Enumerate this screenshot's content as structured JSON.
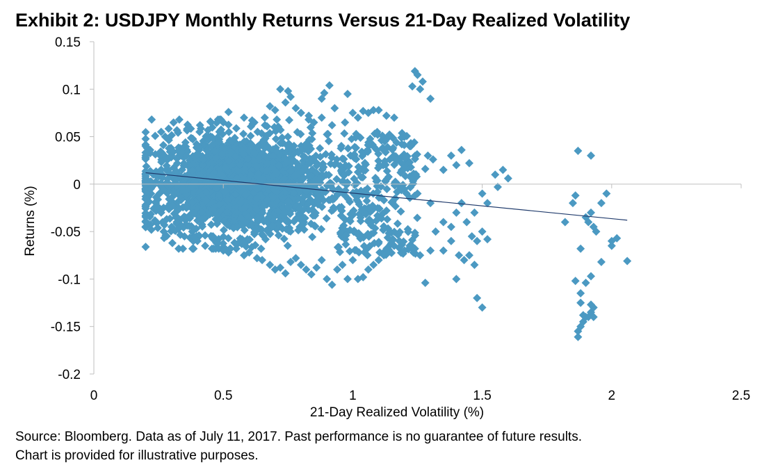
{
  "exhibit": {
    "title": "Exhibit 2: USDJPY Monthly Returns Versus 21-Day Realized Volatility",
    "source_line1": "Source: Bloomberg.  Data as of July 11, 2017.  Past performance is no guarantee of future results.",
    "source_line2": "Chart is provided for illustrative purposes."
  },
  "colors": {
    "marker": "#4b99c2",
    "trendline": "#1f3a6b",
    "axis": "#bfbfbf"
  },
  "chart_data": {
    "type": "scatter",
    "title": "Exhibit 2: USDJPY Monthly Returns Versus 21-Day Realized Volatility",
    "xlabel": "21-Day Realized Volatility (%)",
    "ylabel": "Returns (%)",
    "xlim": [
      0,
      2.5
    ],
    "ylim": [
      -0.2,
      0.15
    ],
    "x_ticks": [
      0,
      0.5,
      1,
      1.5,
      2,
      2.5
    ],
    "x_tick_labels": [
      "0",
      "0.5",
      "1",
      "1.5",
      "2",
      "2.5"
    ],
    "y_ticks": [
      -0.2,
      -0.15,
      -0.1,
      -0.05,
      0,
      0.05,
      0.1,
      0.15
    ],
    "y_tick_labels": [
      "-0.2",
      "-0.15",
      "-0.1",
      "-0.05",
      "0",
      "0.05",
      "0.1",
      "0.15"
    ],
    "grid": false,
    "legend": "none",
    "marker": "diamond",
    "trendline": {
      "x": [
        0.2,
        2.06
      ],
      "y": [
        0.012,
        -0.038
      ]
    },
    "dense_region": {
      "description": "several thousand overlapping daily observations",
      "x_range": [
        0.2,
        1.0
      ],
      "y_range": [
        -0.07,
        0.07
      ]
    },
    "points": [
      [
        0.26,
        0.055
      ],
      [
        0.3,
        0.03
      ],
      [
        0.33,
        0.068
      ],
      [
        0.36,
        0.058
      ],
      [
        0.41,
        0.062
      ],
      [
        0.45,
        0.066
      ],
      [
        0.5,
        0.065
      ],
      [
        0.52,
        0.076
      ],
      [
        0.58,
        0.07
      ],
      [
        0.62,
        0.065
      ],
      [
        0.66,
        0.07
      ],
      [
        0.68,
        0.082
      ],
      [
        0.7,
        0.078
      ],
      [
        0.72,
        0.1
      ],
      [
        0.75,
        0.098
      ],
      [
        0.76,
        0.092
      ],
      [
        0.74,
        0.086
      ],
      [
        0.78,
        0.08
      ],
      [
        0.8,
        0.075
      ],
      [
        0.83,
        0.072
      ],
      [
        0.85,
        0.065
      ],
      [
        0.88,
        0.07
      ],
      [
        0.92,
        0.062
      ],
      [
        0.88,
        0.09
      ],
      [
        0.89,
        0.096
      ],
      [
        0.91,
        0.104
      ],
      [
        0.93,
        0.08
      ],
      [
        0.97,
        0.065
      ],
      [
        0.98,
        0.095
      ],
      [
        1.0,
        0.075
      ],
      [
        1.02,
        0.07
      ],
      [
        1.04,
        0.077
      ],
      [
        1.06,
        0.075
      ],
      [
        1.08,
        0.078
      ],
      [
        1.1,
        0.078
      ],
      [
        1.13,
        0.072
      ],
      [
        1.16,
        0.07
      ],
      [
        1.2,
        0.05
      ],
      [
        1.22,
        0.04
      ],
      [
        1.24,
        0.119
      ],
      [
        1.25,
        0.115
      ],
      [
        1.23,
        0.103
      ],
      [
        1.26,
        0.1
      ],
      [
        1.27,
        0.108
      ],
      [
        1.3,
        0.09
      ],
      [
        1.29,
        0.03
      ],
      [
        1.31,
        0.026
      ],
      [
        1.35,
        0.015
      ],
      [
        1.38,
        0.03
      ],
      [
        1.42,
        0.036
      ],
      [
        1.45,
        0.022
      ],
      [
        1.22,
        0.023
      ],
      [
        1.28,
        0.016
      ],
      [
        1.4,
        0.02
      ],
      [
        0.22,
        -0.005
      ],
      [
        0.24,
        -0.02
      ],
      [
        0.26,
        -0.03
      ],
      [
        0.27,
        -0.05
      ],
      [
        0.3,
        -0.045
      ],
      [
        0.32,
        -0.04
      ],
      [
        0.35,
        -0.055
      ],
      [
        0.38,
        -0.05
      ],
      [
        0.4,
        -0.06
      ],
      [
        0.43,
        -0.065
      ],
      [
        0.46,
        -0.055
      ],
      [
        0.48,
        -0.062
      ],
      [
        0.5,
        -0.07
      ],
      [
        0.52,
        -0.072
      ],
      [
        0.55,
        -0.068
      ],
      [
        0.58,
        -0.075
      ],
      [
        0.6,
        -0.072
      ],
      [
        0.63,
        -0.078
      ],
      [
        0.65,
        -0.08
      ],
      [
        0.68,
        -0.085
      ],
      [
        0.7,
        -0.09
      ],
      [
        0.72,
        -0.088
      ],
      [
        0.74,
        -0.094
      ],
      [
        0.76,
        -0.082
      ],
      [
        0.78,
        -0.078
      ],
      [
        0.8,
        -0.085
      ],
      [
        0.82,
        -0.09
      ],
      [
        0.84,
        -0.095
      ],
      [
        0.86,
        -0.088
      ],
      [
        0.88,
        -0.08
      ],
      [
        0.9,
        -0.1
      ],
      [
        0.92,
        -0.106
      ],
      [
        0.94,
        -0.09
      ],
      [
        0.96,
        -0.085
      ],
      [
        0.98,
        -0.1
      ],
      [
        1.0,
        -0.08
      ],
      [
        1.02,
        -0.1
      ],
      [
        1.04,
        -0.098
      ],
      [
        1.06,
        -0.09
      ],
      [
        1.08,
        -0.085
      ],
      [
        1.1,
        -0.08
      ],
      [
        1.12,
        -0.075
      ],
      [
        1.14,
        -0.07
      ],
      [
        1.16,
        -0.065
      ],
      [
        1.18,
        -0.06
      ],
      [
        1.2,
        -0.07
      ],
      [
        1.22,
        -0.065
      ],
      [
        1.24,
        -0.068
      ],
      [
        1.26,
        -0.075
      ],
      [
        1.28,
        -0.104
      ],
      [
        1.3,
        -0.07
      ],
      [
        1.32,
        -0.05
      ],
      [
        1.35,
        -0.07
      ],
      [
        1.38,
        -0.06
      ],
      [
        1.4,
        -0.1
      ],
      [
        1.41,
        -0.075
      ],
      [
        1.43,
        -0.08
      ],
      [
        1.45,
        -0.075
      ],
      [
        1.47,
        -0.085
      ],
      [
        1.48,
        -0.12
      ],
      [
        1.5,
        -0.13
      ],
      [
        1.46,
        -0.055
      ],
      [
        1.48,
        -0.06
      ],
      [
        1.5,
        -0.05
      ],
      [
        1.52,
        -0.058
      ],
      [
        1.44,
        -0.04
      ],
      [
        1.47,
        -0.03
      ],
      [
        1.5,
        -0.01
      ],
      [
        1.52,
        -0.02
      ],
      [
        1.55,
        0.01
      ],
      [
        1.58,
        0.015
      ],
      [
        1.6,
        0.006
      ],
      [
        1.56,
        -0.003
      ],
      [
        1.42,
        -0.02
      ],
      [
        1.4,
        -0.03
      ],
      [
        1.38,
        -0.045
      ],
      [
        1.35,
        -0.04
      ],
      [
        1.3,
        -0.02
      ],
      [
        1.25,
        -0.01
      ],
      [
        1.82,
        -0.04
      ],
      [
        1.85,
        -0.02
      ],
      [
        1.86,
        -0.012
      ],
      [
        1.87,
        0.035
      ],
      [
        1.92,
        0.03
      ],
      [
        1.96,
        -0.02
      ],
      [
        1.98,
        -0.01
      ],
      [
        1.86,
        -0.102
      ],
      [
        1.88,
        -0.115
      ],
      [
        1.88,
        -0.068
      ],
      [
        1.9,
        -0.035
      ],
      [
        1.91,
        -0.04
      ],
      [
        1.92,
        -0.03
      ],
      [
        1.93,
        -0.045
      ],
      [
        1.94,
        -0.05
      ],
      [
        1.92,
        -0.097
      ],
      [
        1.9,
        -0.104
      ],
      [
        1.96,
        -0.082
      ],
      [
        2.0,
        -0.065
      ],
      [
        2.0,
        -0.06
      ],
      [
        2.02,
        -0.057
      ],
      [
        2.06,
        -0.081
      ],
      [
        1.87,
        -0.161
      ],
      [
        1.87,
        -0.155
      ],
      [
        1.88,
        -0.15
      ],
      [
        1.89,
        -0.145
      ],
      [
        1.9,
        -0.14
      ],
      [
        1.91,
        -0.14
      ],
      [
        1.92,
        -0.135
      ],
      [
        1.93,
        -0.14
      ],
      [
        1.93,
        -0.13
      ],
      [
        1.92,
        -0.127
      ],
      [
        1.89,
        -0.138
      ],
      [
        1.88,
        -0.125
      ]
    ]
  }
}
